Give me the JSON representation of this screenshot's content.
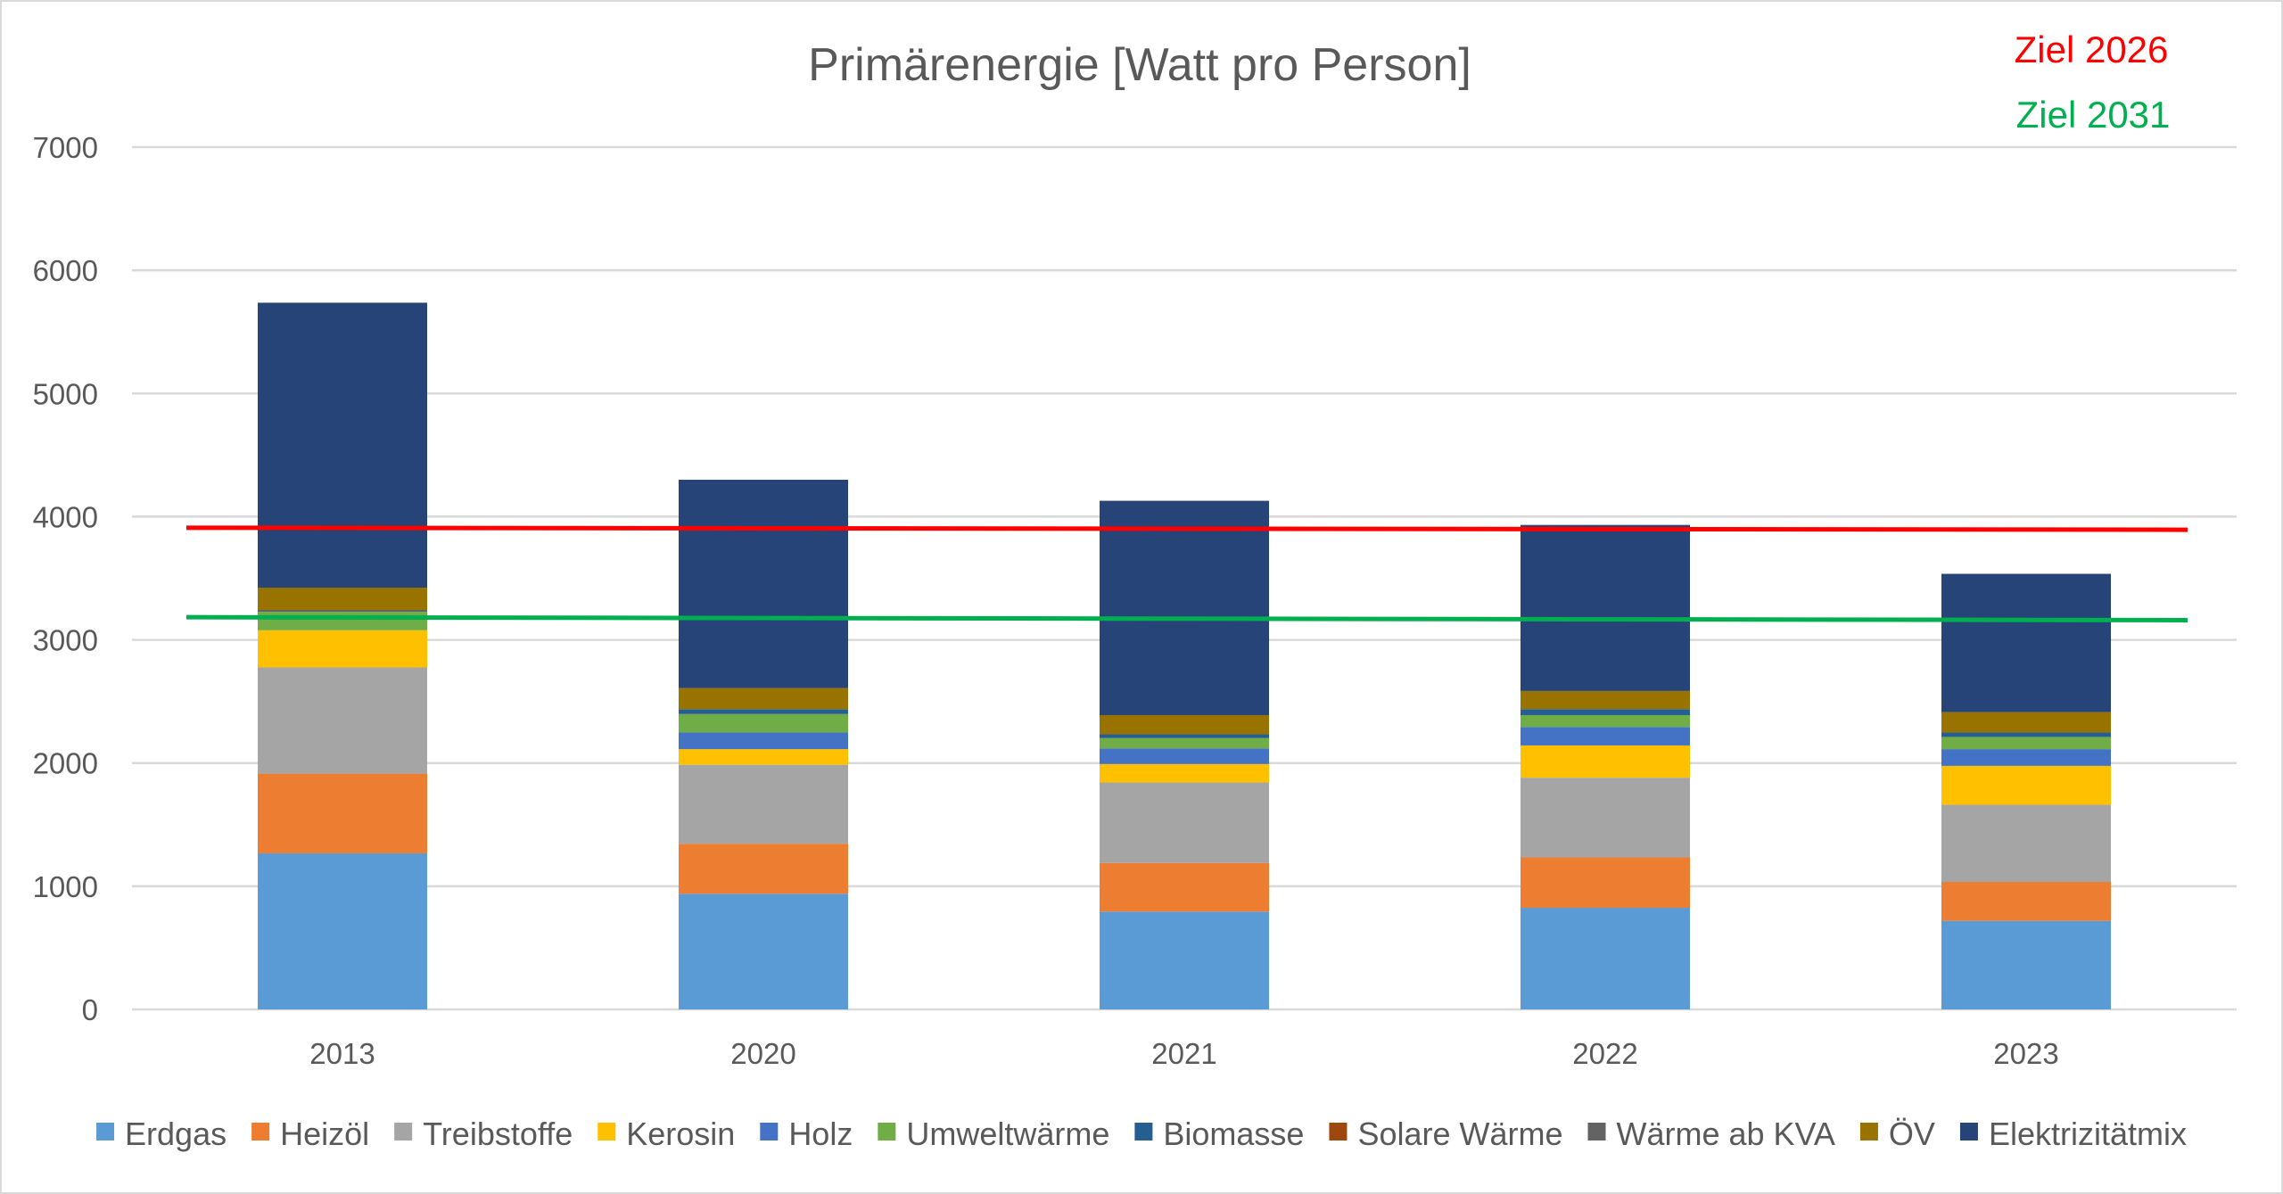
{
  "chart_data": {
    "type": "bar",
    "stacked": true,
    "title": "Primärenergie [Watt pro Person]",
    "xlabel": "",
    "ylabel": "",
    "ylim": [
      0,
      7000
    ],
    "yticks": [
      0,
      1000,
      2000,
      3000,
      4000,
      5000,
      6000,
      7000
    ],
    "grid": true,
    "legend_position": "bottom",
    "categories": [
      "2013",
      "2020",
      "2021",
      "2022",
      "2023"
    ],
    "series": [
      {
        "name": "Erdgas",
        "color": "#5b9bd5",
        "values": [
          1267,
          939,
          794,
          825,
          719
        ]
      },
      {
        "name": "Heizöl",
        "color": "#ed7d31",
        "values": [
          647,
          406,
          395,
          409,
          316
        ]
      },
      {
        "name": "Treibstoffe",
        "color": "#a5a5a5",
        "values": [
          862,
          641,
          653,
          647,
          626
        ]
      },
      {
        "name": "Kerosin",
        "color": "#ffc000",
        "values": [
          302,
          127,
          150,
          262,
          316
        ]
      },
      {
        "name": "Holz",
        "color": "#4472c4",
        "values": [
          0,
          135,
          127,
          150,
          136
        ]
      },
      {
        "name": "Umweltwärme",
        "color": "#70ad47",
        "values": [
          150,
          150,
          84,
          96,
          99
        ]
      },
      {
        "name": "Biomasse",
        "color": "#255e91",
        "values": [
          0,
          39,
          30,
          49,
          36
        ]
      },
      {
        "name": "Solare Wärme",
        "color": "#9e480e",
        "values": [
          0,
          0,
          0,
          0,
          0
        ]
      },
      {
        "name": "Wärme ab KVA",
        "color": "#636363",
        "values": [
          15,
          0,
          0,
          0,
          0
        ]
      },
      {
        "name": "ÖV",
        "color": "#997300",
        "values": [
          181,
          172,
          156,
          147,
          165
        ]
      },
      {
        "name": "Elektrizitätmix",
        "color": "#264478",
        "values": [
          2313,
          1691,
          1740,
          1348,
          1123
        ]
      }
    ],
    "target_lines": [
      {
        "name": "Ziel 2026",
        "color": "#ff0000",
        "values": [
          3910,
          3894
        ]
      },
      {
        "name": "Ziel 2031",
        "color": "#00b050",
        "values": [
          3184,
          3160
        ]
      }
    ]
  }
}
